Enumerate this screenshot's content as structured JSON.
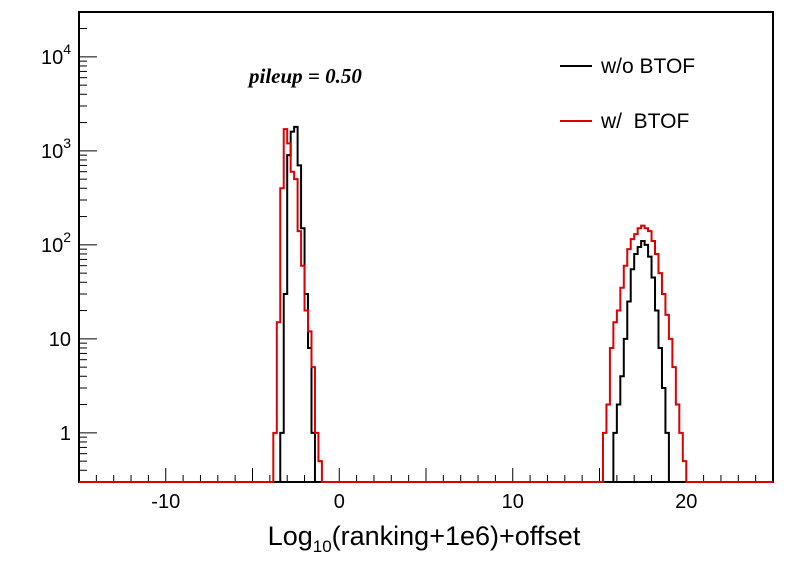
{
  "chart_data": {
    "type": "histogram",
    "xlabel": {
      "base": "Log",
      "sub": "10",
      "rest": "(ranking+1e6)+offset"
    },
    "ylabel": "",
    "title": "",
    "annotation": "pileup = 0.50",
    "xlim": [
      -15,
      25
    ],
    "ylim": [
      0.3,
      30000
    ],
    "yscale": "log",
    "grid": false,
    "legend_position": "top-right",
    "xticks": [
      {
        "value": -10,
        "label": "-10"
      },
      {
        "value": 0,
        "label": "0"
      },
      {
        "value": 10,
        "label": "10"
      },
      {
        "value": 20,
        "label": "20"
      }
    ],
    "yticks": [
      {
        "value": 1,
        "label": "1"
      },
      {
        "value": 10,
        "label": "10"
      },
      {
        "value": 100,
        "base": "10",
        "exp": "2"
      },
      {
        "value": 1000,
        "base": "10",
        "exp": "3"
      },
      {
        "value": 10000,
        "base": "10",
        "exp": "4"
      }
    ],
    "series": [
      {
        "name": "w/o BTOF",
        "color": "#000000",
        "peaks": [
          {
            "x": [
              -3.4,
              -3.2,
              -3.0,
              -2.8,
              -2.6,
              -2.4,
              -2.2,
              -2.0,
              -1.8,
              -1.6,
              -1.4
            ],
            "y": [
              1,
              30,
              900,
              1600,
              1800,
              700,
              150,
              30,
              8,
              1,
              0
            ]
          },
          {
            "x": [
              15.8,
              16.0,
              16.2,
              16.4,
              16.6,
              16.8,
              17.0,
              17.2,
              17.4,
              17.6,
              17.8,
              18.0,
              18.2,
              18.4,
              18.6,
              18.8,
              19.0
            ],
            "y": [
              1,
              2,
              4,
              10,
              25,
              55,
              80,
              95,
              110,
              100,
              75,
              45,
              20,
              8,
              3,
              1,
              0
            ]
          }
        ]
      },
      {
        "name": "w/  BTOF",
        "color": "#dd0000",
        "peaks": [
          {
            "x": [
              -3.8,
              -3.6,
              -3.4,
              -3.2,
              -3.0,
              -2.8,
              -2.6,
              -2.4,
              -2.2,
              -2.0,
              -1.8,
              -1.6,
              -1.4,
              -1.2,
              -1.0
            ],
            "y": [
              1,
              15,
              400,
              1700,
              1200,
              600,
              500,
              140,
              60,
              20,
              12,
              5,
              1,
              0.5,
              0
            ]
          },
          {
            "x": [
              15.2,
              15.4,
              15.6,
              15.8,
              16.0,
              16.2,
              16.4,
              16.6,
              16.8,
              17.0,
              17.2,
              17.4,
              17.6,
              17.8,
              18.0,
              18.2,
              18.4,
              18.6,
              18.8,
              19.0,
              19.2,
              19.4,
              19.6,
              19.8,
              20.0
            ],
            "y": [
              1,
              2,
              8,
              15,
              20,
              35,
              60,
              90,
              115,
              130,
              150,
              160,
              150,
              140,
              110,
              80,
              50,
              30,
              18,
              10,
              5,
              2,
              1,
              0.5,
              0
            ]
          }
        ]
      }
    ]
  }
}
